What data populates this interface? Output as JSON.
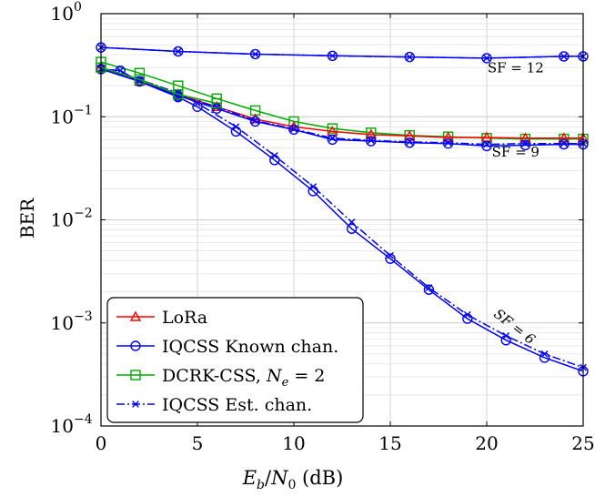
{
  "chart_data": {
    "type": "line",
    "xlabel": "E_b/N_0 (dB)",
    "ylabel": "BER",
    "y_scale": "log",
    "xlim": [
      0,
      25
    ],
    "ylim": [
      0.0001,
      1
    ],
    "x_ticks": [
      0,
      5,
      10,
      15,
      20,
      25
    ],
    "x_tick_labels": [
      "0",
      "5",
      "10",
      "15",
      "20",
      "25"
    ],
    "y_ticks": [
      0.0001,
      0.001,
      0.01,
      0.1,
      1
    ],
    "y_tick_labels": [
      {
        "base": "10",
        "exp": "−4"
      },
      {
        "base": "10",
        "exp": "−3"
      },
      {
        "base": "10",
        "exp": "−2"
      },
      {
        "base": "10",
        "exp": "−1"
      },
      {
        "base": "10",
        "exp": "0"
      }
    ],
    "grid": true,
    "legend_position": "bottom-left",
    "legend": [
      {
        "label": "LoRa",
        "color": "#ff0000",
        "marker": "triangle",
        "dash": "solid"
      },
      {
        "label": "IQCSS Known chan.",
        "color": "#0000ff",
        "marker": "circle",
        "dash": "solid"
      },
      {
        "label": "DCRK-CSS, N_e = 2",
        "color": "#00aa00",
        "marker": "square",
        "dash": "solid"
      },
      {
        "label": "IQCSS Est. chan.",
        "color": "#0000ff",
        "marker": "x",
        "dash": "dashdot"
      }
    ],
    "annotations": [
      {
        "text": "SF = 12",
        "x": 21.5,
        "y": 0.27,
        "rotate": 0
      },
      {
        "text": "SF = 9",
        "x": 21.5,
        "y": 0.041,
        "rotate": 0
      },
      {
        "text": "SF = 6",
        "x": 21.3,
        "y": 0.00085,
        "rotate": 38
      }
    ],
    "series": [
      {
        "legend": 1,
        "group": "SF=12",
        "x": [
          0,
          4,
          8,
          12,
          16,
          20,
          24,
          25
        ],
        "y": [
          0.47,
          0.43,
          0.405,
          0.39,
          0.38,
          0.37,
          0.385,
          0.385
        ]
      },
      {
        "legend": 3,
        "group": "SF=12",
        "x": [
          0,
          4,
          8,
          12,
          16,
          20,
          24,
          25
        ],
        "y": [
          0.47,
          0.43,
          0.405,
          0.39,
          0.38,
          0.37,
          0.385,
          0.385
        ]
      },
      {
        "legend": 2,
        "group": "SF=9",
        "x": [
          0,
          2,
          4,
          6,
          8,
          10,
          12,
          14,
          16,
          18,
          20,
          22,
          24,
          25
        ],
        "y": [
          0.34,
          0.265,
          0.2,
          0.15,
          0.115,
          0.09,
          0.077,
          0.07,
          0.066,
          0.064,
          0.062,
          0.061,
          0.061,
          0.061
        ]
      },
      {
        "legend": 0,
        "group": "SF=9",
        "x": [
          0,
          2,
          4,
          6,
          8,
          10,
          12,
          14,
          16,
          18,
          20,
          22,
          24,
          25
        ],
        "y": [
          0.3,
          0.22,
          0.165,
          0.125,
          0.095,
          0.08,
          0.072,
          0.067,
          0.065,
          0.063,
          0.063,
          0.062,
          0.062,
          0.062
        ]
      },
      {
        "legend": 1,
        "group": "SF=9",
        "x": [
          0,
          1,
          2,
          4,
          6,
          8,
          10,
          12,
          14,
          16,
          18,
          20,
          22,
          24,
          25
        ],
        "y": [
          0.29,
          0.28,
          0.22,
          0.16,
          0.12,
          0.09,
          0.075,
          0.06,
          0.058,
          0.056,
          0.055,
          0.052,
          0.053,
          0.054,
          0.054
        ]
      },
      {
        "legend": 3,
        "group": "SF=9",
        "x": [
          0,
          1,
          2,
          4,
          6,
          8,
          10,
          12,
          14,
          16,
          18,
          20,
          22,
          24,
          25
        ],
        "y": [
          0.29,
          0.28,
          0.22,
          0.16,
          0.125,
          0.092,
          0.076,
          0.062,
          0.059,
          0.057,
          0.056,
          0.054,
          0.055,
          0.055,
          0.055
        ]
      },
      {
        "legend": 1,
        "group": "SF=6",
        "x": [
          0,
          2,
          4,
          5,
          7,
          9,
          11,
          13,
          15,
          17,
          19,
          21,
          23,
          25
        ],
        "y": [
          0.29,
          0.22,
          0.155,
          0.125,
          0.072,
          0.038,
          0.019,
          0.0082,
          0.0042,
          0.0021,
          0.0011,
          0.00068,
          0.00046,
          0.00034
        ]
      },
      {
        "legend": 3,
        "group": "SF=6",
        "x": [
          0,
          2,
          4,
          5,
          7,
          9,
          11,
          13,
          15,
          17,
          19,
          21,
          23,
          25
        ],
        "y": [
          0.29,
          0.23,
          0.17,
          0.135,
          0.08,
          0.042,
          0.021,
          0.0095,
          0.0045,
          0.0022,
          0.0012,
          0.00075,
          0.0005,
          0.00037
        ]
      },
      {
        "legend": 2,
        "group": "SF=6",
        "x": [
          0,
          2,
          4,
          6
        ],
        "y": [
          0.3,
          0.23,
          0.165,
          0.135
        ]
      }
    ]
  }
}
